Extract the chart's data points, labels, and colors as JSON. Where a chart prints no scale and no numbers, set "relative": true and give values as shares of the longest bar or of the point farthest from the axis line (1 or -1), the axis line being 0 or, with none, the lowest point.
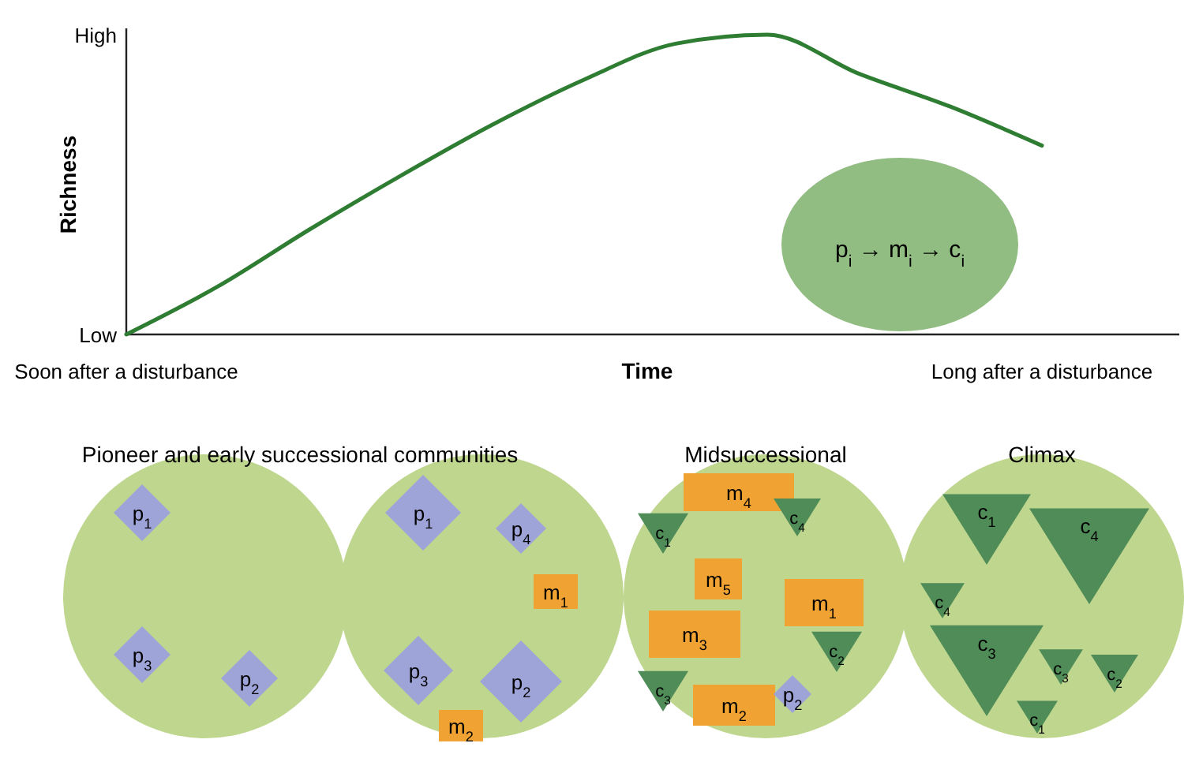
{
  "chart_data": {
    "type": "line",
    "ylabel": "Richness",
    "xlabel": "Time",
    "relative": true,
    "categories": [
      null,
      null,
      null,
      null,
      null,
      null,
      null,
      null,
      null,
      null,
      null
    ],
    "values": [
      0,
      0.16,
      0.35,
      0.53,
      0.7,
      0.85,
      0.97,
      1,
      0.87,
      0.76,
      0.63
    ],
    "color": "#2e7d32",
    "annotations": [
      "p$_{i}$ → m$_{i}$ → c$_{i}$",
      "Pioneer and early successional communities",
      "Midsuccessional",
      "Climax",
      "p$_{1}$",
      "p$_{3}$",
      "p$_{2}$",
      "p$_{1}$",
      "p$_{4}$",
      "m$_{1}$",
      "p$_{3}$",
      "p$_{2}$",
      "m$_{2}$",
      "m$_{4}$",
      "c$_{1}$",
      "c$_{4}$",
      "m$_{5}$",
      "m$_{1}$",
      "m$_{3}$",
      "c$_{2}$",
      "c$_{3}$",
      "m$_{2}$",
      "p$_{2}$",
      "c$_{1}$",
      "c$_{4}$",
      "c$_{4}$",
      "c$_{3}$",
      "c$_{3}$",
      "c$_{2}$",
      "c$_{1}$",
      "High",
      "Low",
      "Soon after a disturbance",
      "Long after a disturbance"
    ]
  }
}
